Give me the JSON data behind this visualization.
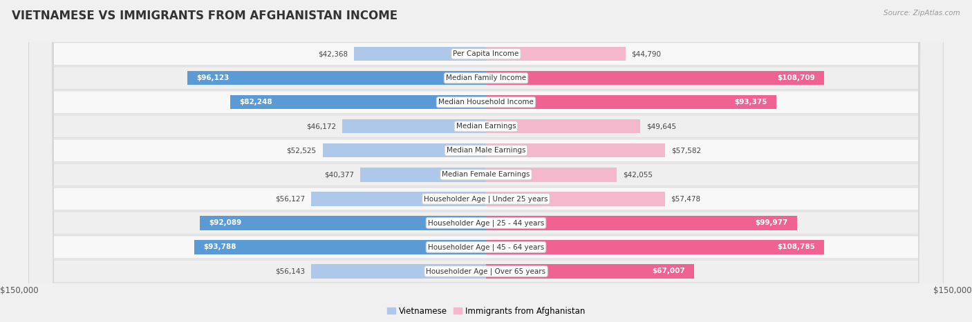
{
  "title": "VIETNAMESE VS IMMIGRANTS FROM AFGHANISTAN INCOME",
  "source": "Source: ZipAtlas.com",
  "categories": [
    "Per Capita Income",
    "Median Family Income",
    "Median Household Income",
    "Median Earnings",
    "Median Male Earnings",
    "Median Female Earnings",
    "Householder Age | Under 25 years",
    "Householder Age | 25 - 44 years",
    "Householder Age | 45 - 64 years",
    "Householder Age | Over 65 years"
  ],
  "vietnamese": [
    42368,
    96123,
    82248,
    46172,
    52525,
    40377,
    56127,
    92089,
    93788,
    56143
  ],
  "afghanistan": [
    44790,
    108709,
    93375,
    49645,
    57582,
    42055,
    57478,
    99977,
    108785,
    67007
  ],
  "max_val": 150000,
  "blue_light": "#adc8e8",
  "blue_dark": "#5b9bd5",
  "pink_light": "#f4b8cc",
  "pink_dark": "#f06292",
  "label_blue": "Vietnamese",
  "label_pink": "Immigrants from Afghanistan",
  "bg_color": "#f0f0f0",
  "row_bg_light": "#fafafa",
  "row_bg_dark": "#f0f0f0",
  "bar_height": 0.58,
  "title_fontsize": 12,
  "cat_fontsize": 7.5,
  "value_fontsize": 7.5,
  "axis_label": "$150,000",
  "white_text_threshold": 62000
}
